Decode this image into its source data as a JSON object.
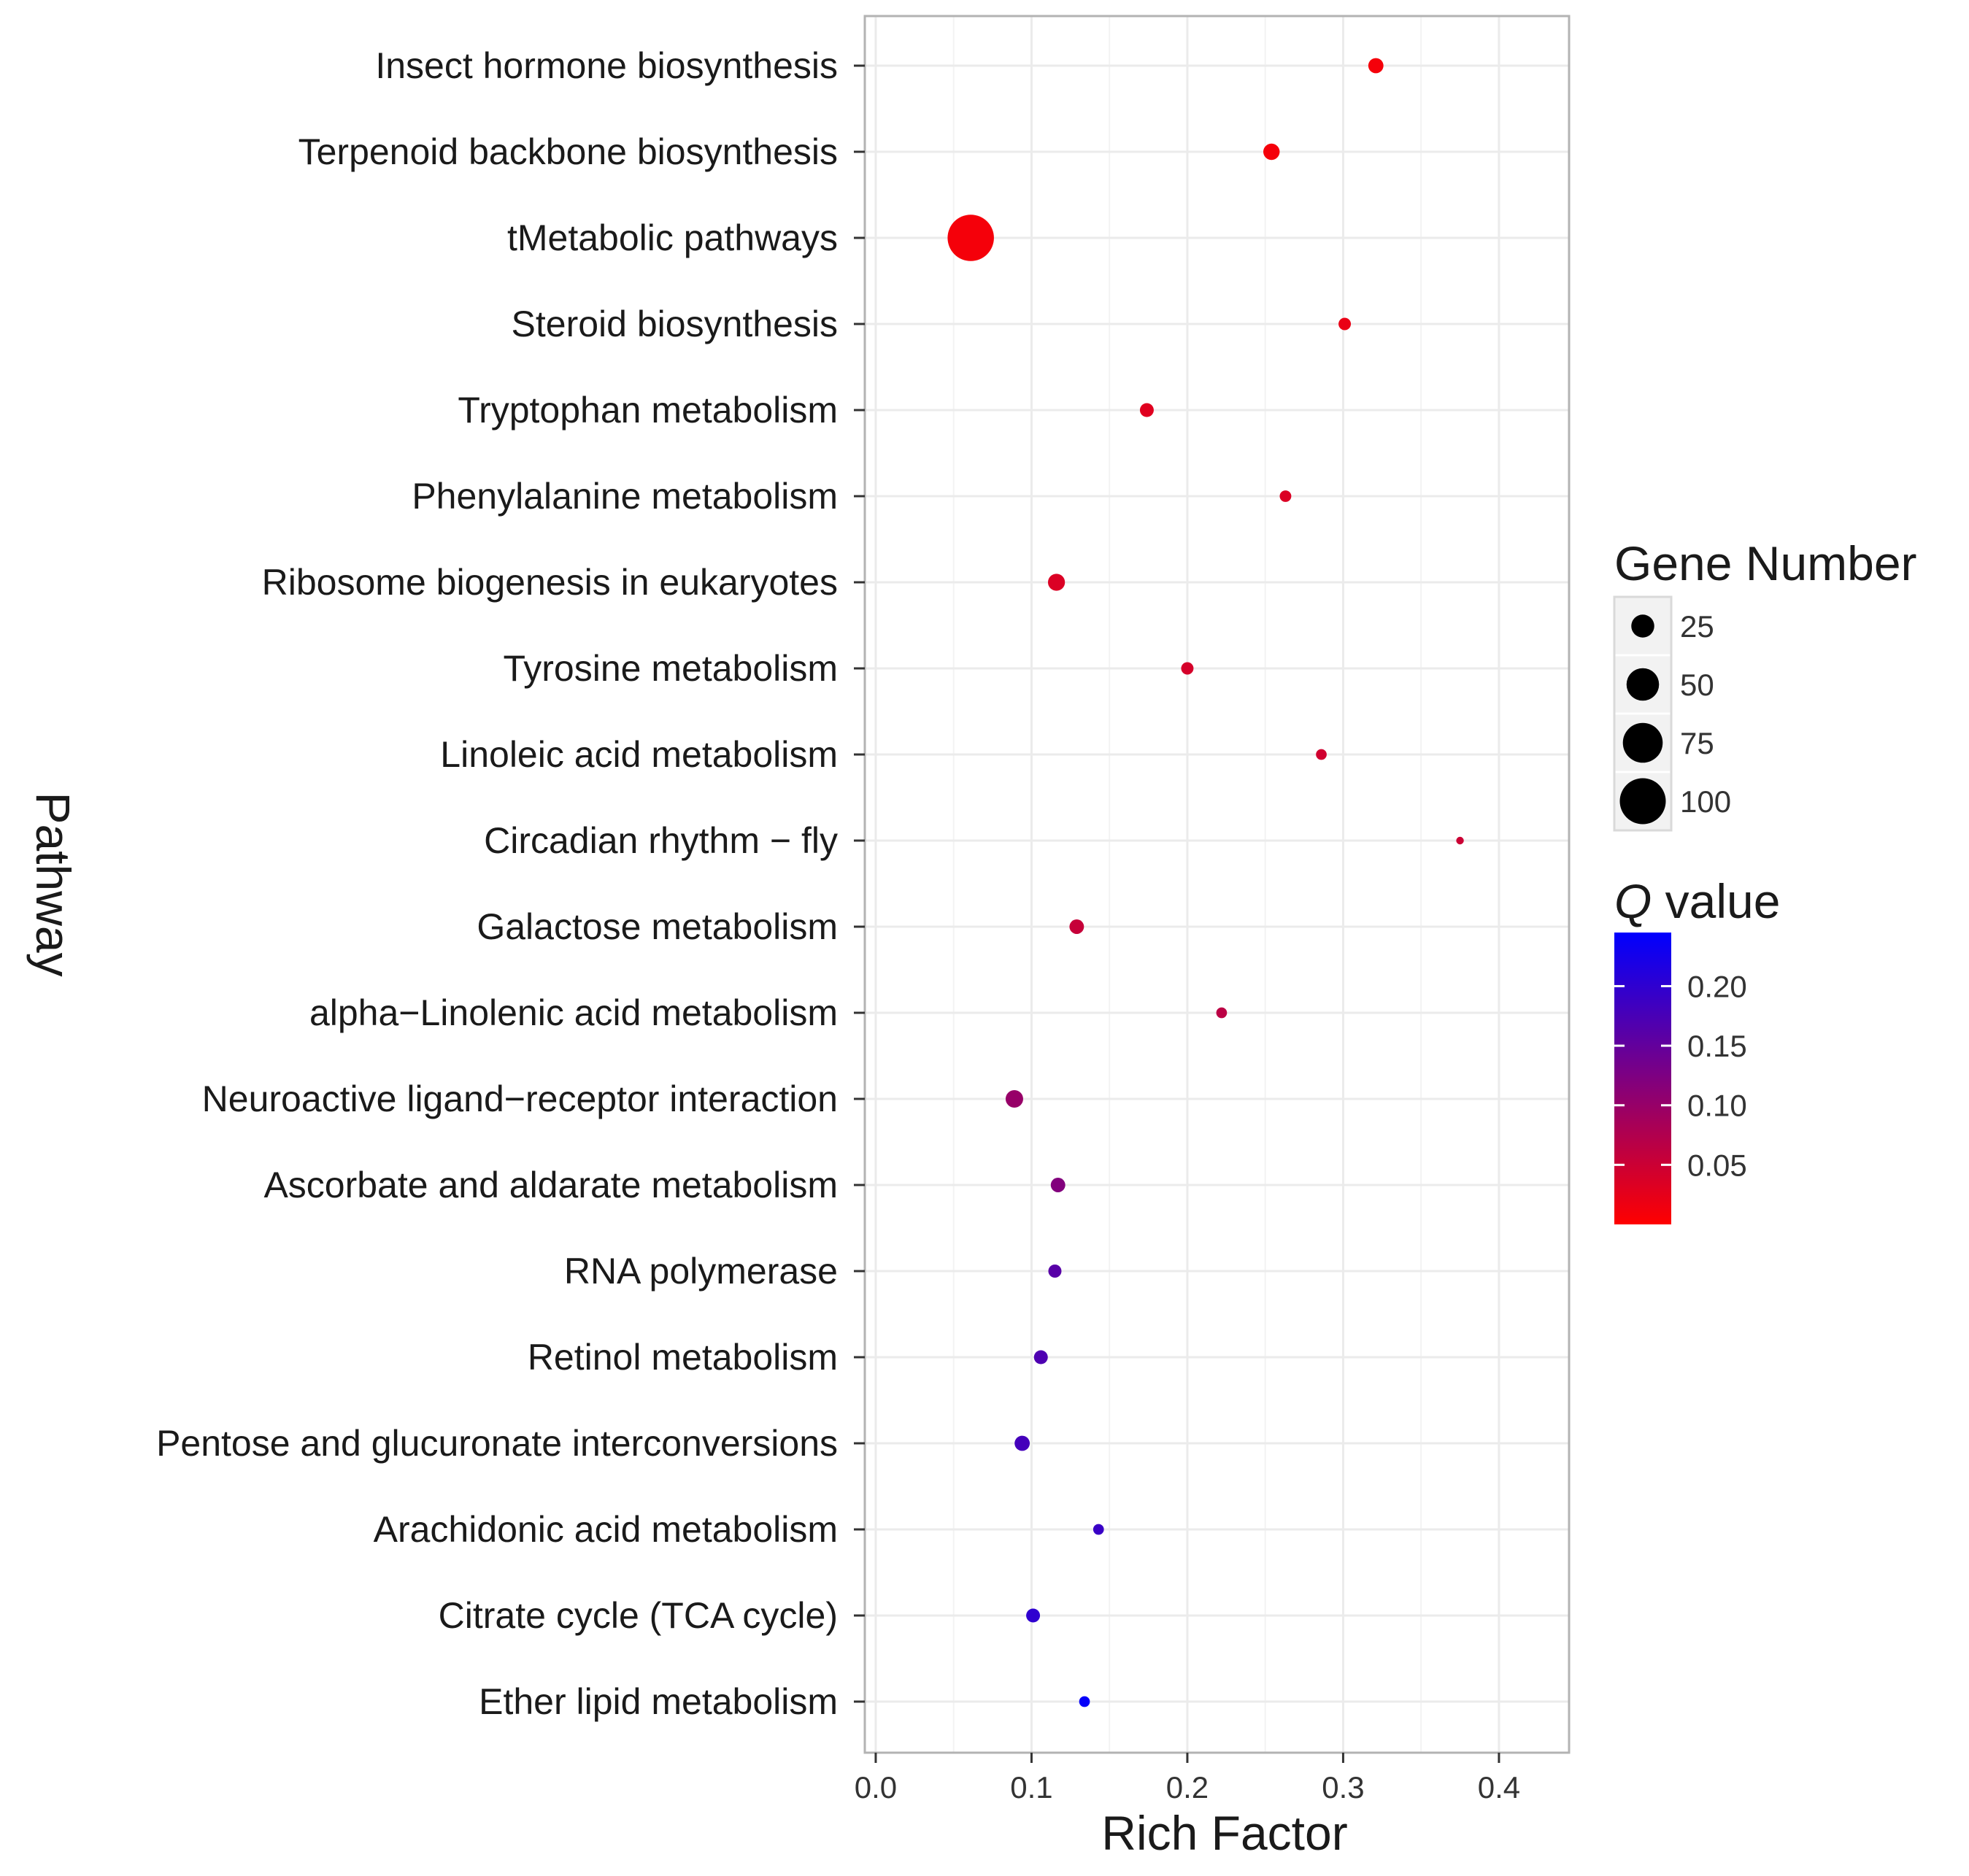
{
  "chart_data": {
    "type": "scatter",
    "xlabel": "Rich Factor",
    "ylabel": "Pathway",
    "xlim": [
      -0.007,
      0.445
    ],
    "xticks": [
      0.0,
      0.1,
      0.2,
      0.3,
      0.4
    ],
    "xtick_labels": [
      "0.0",
      "0.1",
      "0.2",
      "0.3",
      "0.4"
    ],
    "grid": true,
    "points": [
      {
        "pathway": "Insect hormone biosynthesis",
        "rich_factor": 0.321,
        "gene_number": 12,
        "q_value": 0.01
      },
      {
        "pathway": "Terpenoid backbone biosynthesis",
        "rich_factor": 0.254,
        "gene_number": 14,
        "q_value": 0.01
      },
      {
        "pathway": "tMetabolic pathways",
        "rich_factor": 0.061,
        "gene_number": 112,
        "q_value": 0.01
      },
      {
        "pathway": "Steroid biosynthesis",
        "rich_factor": 0.301,
        "gene_number": 8,
        "q_value": 0.02
      },
      {
        "pathway": "Tryptophan metabolism",
        "rich_factor": 0.174,
        "gene_number": 10,
        "q_value": 0.03
      },
      {
        "pathway": "Phenylalanine metabolism",
        "rich_factor": 0.263,
        "gene_number": 7,
        "q_value": 0.035
      },
      {
        "pathway": "Ribosome biogenesis in eukaryotes",
        "rich_factor": 0.116,
        "gene_number": 15,
        "q_value": 0.035
      },
      {
        "pathway": "Tyrosine metabolism",
        "rich_factor": 0.2,
        "gene_number": 8,
        "q_value": 0.04
      },
      {
        "pathway": "Linoleic acid metabolism",
        "rich_factor": 0.286,
        "gene_number": 6,
        "q_value": 0.045
      },
      {
        "pathway": "Circadian rhythm − fly",
        "rich_factor": 0.375,
        "gene_number": 3,
        "q_value": 0.05
      },
      {
        "pathway": "Galactose metabolism",
        "rich_factor": 0.129,
        "gene_number": 11,
        "q_value": 0.055
      },
      {
        "pathway": "alpha−Linolenic acid metabolism",
        "rich_factor": 0.222,
        "gene_number": 6,
        "q_value": 0.065
      },
      {
        "pathway": "Neuroactive ligand−receptor interaction",
        "rich_factor": 0.089,
        "gene_number": 16,
        "q_value": 0.1
      },
      {
        "pathway": "Ascorbate and aldarate metabolism",
        "rich_factor": 0.117,
        "gene_number": 11,
        "q_value": 0.12
      },
      {
        "pathway": "RNA polymerase",
        "rich_factor": 0.115,
        "gene_number": 9,
        "q_value": 0.16
      },
      {
        "pathway": "Retinol metabolism",
        "rich_factor": 0.106,
        "gene_number": 10,
        "q_value": 0.17
      },
      {
        "pathway": "Pentose and glucuronate interconversions",
        "rich_factor": 0.094,
        "gene_number": 12,
        "q_value": 0.18
      },
      {
        "pathway": "Arachidonic acid metabolism",
        "rich_factor": 0.143,
        "gene_number": 6,
        "q_value": 0.19
      },
      {
        "pathway": "Citrate cycle (TCA cycle)",
        "rich_factor": 0.101,
        "gene_number": 10,
        "q_value": 0.2
      },
      {
        "pathway": "Ether lipid metabolism",
        "rich_factor": 0.134,
        "gene_number": 6,
        "q_value": 0.24
      }
    ],
    "size_legend": {
      "title": "Gene Number",
      "values": [
        25,
        50,
        75,
        100
      ],
      "labels": [
        "25",
        "50",
        "75",
        "100"
      ]
    },
    "color_legend": {
      "title": "Q value",
      "range": [
        0.0,
        0.245
      ],
      "ticks": [
        0.2,
        0.15,
        0.1,
        0.05
      ],
      "tick_labels": [
        "0.20",
        "0.15",
        "0.10",
        "0.05"
      ],
      "low_color": "#ff0000",
      "high_color": "#0000ff"
    }
  }
}
